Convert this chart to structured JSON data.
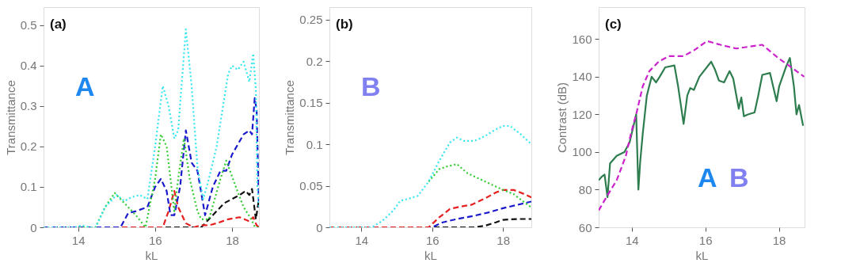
{
  "chart_data": [
    {
      "type": "line",
      "xlabel": "kL",
      "ylabel": "Transmittance",
      "annotations": [
        "(a)",
        "A"
      ],
      "xlim": [
        13.1,
        18.7
      ],
      "xticks": [
        14,
        16,
        18
      ],
      "ylim": [
        0,
        0.545
      ],
      "yticks": [
        0,
        0.1,
        0.2,
        0.3,
        0.4,
        0.5
      ],
      "grid": false,
      "series": [
        {
          "color": "#33e6f0",
          "line_style": "dotted",
          "x": [
            13.1,
            13.9,
            14.1,
            14.3,
            14.45,
            14.7,
            15.0,
            15.2,
            15.4,
            15.6,
            15.8,
            16.0,
            16.2,
            16.35,
            16.5,
            16.6,
            16.8,
            16.95,
            17.1,
            17.25,
            17.4,
            17.6,
            17.9,
            18.0,
            18.15,
            18.3,
            18.45,
            18.55,
            18.62,
            18.66,
            18.7
          ],
          "values": [
            0,
            0,
            0.005,
            0,
            0,
            0.05,
            0.08,
            0.065,
            0.075,
            0.08,
            0.07,
            0.2,
            0.35,
            0.3,
            0.22,
            0.24,
            0.49,
            0.35,
            0.15,
            0.07,
            0.12,
            0.2,
            0.38,
            0.4,
            0.39,
            0.41,
            0.36,
            0.43,
            0.34,
            0.1,
            0.05
          ]
        },
        {
          "color": "#33cc33",
          "line_style": "dotted",
          "x": [
            13.1,
            14.45,
            14.7,
            14.95,
            15.2,
            15.5,
            15.75,
            16.0,
            16.15,
            16.3,
            16.5,
            16.6,
            16.75,
            16.9,
            17.1,
            17.2,
            17.4,
            17.7,
            17.85,
            18.1,
            18.3,
            18.5,
            18.6,
            18.7
          ],
          "values": [
            0,
            0,
            0.05,
            0.085,
            0.06,
            0.03,
            0,
            0.12,
            0.23,
            0.2,
            0.04,
            0.12,
            0.22,
            0.12,
            0.04,
            0.02,
            0.02,
            0.12,
            0.165,
            0.1,
            0.05,
            0.02,
            0,
            0
          ]
        },
        {
          "color": "#1a1acc",
          "line_style": "dashed",
          "x": [
            13.1,
            15.1,
            15.3,
            15.5,
            15.8,
            16.0,
            16.15,
            16.3,
            16.4,
            16.5,
            16.65,
            16.8,
            16.95,
            17.1,
            17.3,
            17.5,
            17.7,
            17.85,
            18.0,
            18.3,
            18.45,
            18.52,
            18.59,
            18.64,
            18.7
          ],
          "values": [
            0,
            0,
            0.035,
            0.04,
            0.05,
            0.1,
            0.12,
            0.09,
            0.03,
            0.03,
            0.1,
            0.24,
            0.16,
            0.14,
            0.03,
            0.1,
            0.14,
            0.14,
            0.18,
            0.23,
            0.24,
            0.23,
            0.32,
            0.29,
            0.05
          ]
        },
        {
          "color": "#e62020",
          "line_style": "dashed",
          "x": [
            13.1,
            16.2,
            16.35,
            16.5,
            16.6,
            16.8,
            17.0,
            17.2,
            17.4,
            17.6,
            17.9,
            18.2,
            18.45,
            18.55,
            18.64,
            18.7
          ],
          "values": [
            0,
            0,
            0.04,
            0.09,
            0.05,
            0.01,
            0,
            0.005,
            0.005,
            0.01,
            0.02,
            0.025,
            0.015,
            0.025,
            0.005,
            0
          ]
        },
        {
          "color": "#111111",
          "line_style": "dashed",
          "x": [
            13.1,
            17.2,
            17.5,
            17.8,
            18.0,
            18.2,
            18.35,
            18.45,
            18.52,
            18.62,
            18.7
          ],
          "values": [
            0,
            0,
            0.03,
            0.06,
            0.07,
            0.08,
            0.09,
            0.08,
            0.095,
            0.02,
            0.07
          ]
        }
      ]
    },
    {
      "type": "line",
      "xlabel": "kL",
      "ylabel": "Transmittance",
      "annotations": [
        "(b)",
        "B"
      ],
      "xlim": [
        13.1,
        18.8
      ],
      "xticks": [
        14,
        16,
        18
      ],
      "ylim": [
        0,
        0.265
      ],
      "yticks": [
        0,
        0.05,
        0.1,
        0.15,
        0.2,
        0.25
      ],
      "grid": false,
      "series": [
        {
          "color": "#33e6f0",
          "line_style": "dotted",
          "x": [
            13.1,
            14.3,
            14.6,
            14.9,
            15.1,
            15.3,
            15.6,
            15.9,
            16.2,
            16.5,
            16.7,
            16.9,
            17.2,
            17.5,
            17.8,
            18.0,
            18.2,
            18.5,
            18.8
          ],
          "values": [
            0,
            0,
            0.008,
            0.02,
            0.032,
            0.034,
            0.038,
            0.055,
            0.08,
            0.102,
            0.108,
            0.104,
            0.104,
            0.11,
            0.118,
            0.122,
            0.122,
            0.112,
            0.1
          ]
        },
        {
          "color": "#33cc33",
          "line_style": "dotted",
          "x": [
            15.9,
            16.2,
            16.4,
            16.7,
            17.0,
            17.5,
            18.0,
            18.3,
            18.6,
            18.8
          ],
          "values": [
            0.055,
            0.07,
            0.073,
            0.076,
            0.065,
            0.055,
            0.045,
            0.04,
            0.03,
            0.024
          ]
        },
        {
          "color": "#e62020",
          "line_style": "dashed",
          "x": [
            13.1,
            15.9,
            16.2,
            16.5,
            16.8,
            17.1,
            17.5,
            17.8,
            18.0,
            18.3,
            18.6,
            18.8
          ],
          "values": [
            0,
            0,
            0.012,
            0.022,
            0.025,
            0.027,
            0.035,
            0.042,
            0.045,
            0.045,
            0.04,
            0.036
          ]
        },
        {
          "color": "#1a1acc",
          "line_style": "dashed",
          "x": [
            13.1,
            16.0,
            16.3,
            16.7,
            17.2,
            17.6,
            18.0,
            18.4,
            18.8
          ],
          "values": [
            0,
            0,
            0.006,
            0.01,
            0.014,
            0.018,
            0.023,
            0.027,
            0.031
          ]
        },
        {
          "color": "#111111",
          "line_style": "dashed",
          "x": [
            13.1,
            17.2,
            17.5,
            17.8,
            18.0,
            18.4,
            18.8
          ],
          "values": [
            0,
            0,
            0.002,
            0.006,
            0.009,
            0.01,
            0.01
          ]
        }
      ]
    },
    {
      "type": "line",
      "xlabel": "kL",
      "ylabel": "Contrast (dB)",
      "annotations": [
        "(c)",
        "A",
        "B"
      ],
      "xlim": [
        13.1,
        18.7
      ],
      "xticks": [
        14,
        16,
        18
      ],
      "ylim": [
        60,
        177
      ],
      "yticks": [
        60,
        80,
        100,
        120,
        140,
        160
      ],
      "grid": false,
      "series": [
        {
          "color": "#cc22cc",
          "line_style": "dashed",
          "x": [
            13.1,
            13.34,
            13.59,
            13.84,
            13.98,
            14.12,
            14.3,
            14.48,
            14.73,
            15.01,
            15.41,
            15.69,
            16.05,
            16.41,
            16.84,
            17.19,
            17.55,
            17.98,
            18.34,
            18.69
          ],
          "values": [
            69,
            77,
            85,
            98,
            110,
            120,
            135,
            143,
            148,
            151,
            151,
            154,
            159,
            157,
            155,
            156,
            157,
            150,
            145,
            140
          ]
        },
        {
          "color": "#2e7d4f",
          "line_style": "solid",
          "x": [
            13.1,
            13.19,
            13.26,
            13.34,
            13.41,
            13.59,
            13.8,
            13.94,
            14.12,
            14.18,
            14.23,
            14.3,
            14.41,
            14.54,
            14.66,
            14.76,
            14.91,
            15.16,
            15.26,
            15.41,
            15.51,
            15.59,
            15.69,
            15.84,
            16.12,
            16.16,
            16.26,
            16.37,
            16.51,
            16.66,
            16.76,
            16.91,
            16.98,
            17.05,
            17.16,
            17.34,
            17.44,
            17.55,
            17.76,
            17.94,
            18.01,
            18.19,
            18.3,
            18.41,
            18.48,
            18.55,
            18.66
          ],
          "values": [
            85,
            87,
            88,
            76,
            94,
            98,
            100,
            105,
            120,
            80,
            95,
            110,
            130,
            140,
            137,
            140,
            145,
            146,
            135,
            115,
            130,
            134,
            133,
            140,
            147,
            148,
            144,
            138,
            137,
            143,
            139,
            123,
            129,
            119,
            120,
            121,
            130,
            141,
            142,
            127,
            135,
            145,
            150,
            135,
            120,
            125,
            114
          ]
        }
      ]
    }
  ]
}
